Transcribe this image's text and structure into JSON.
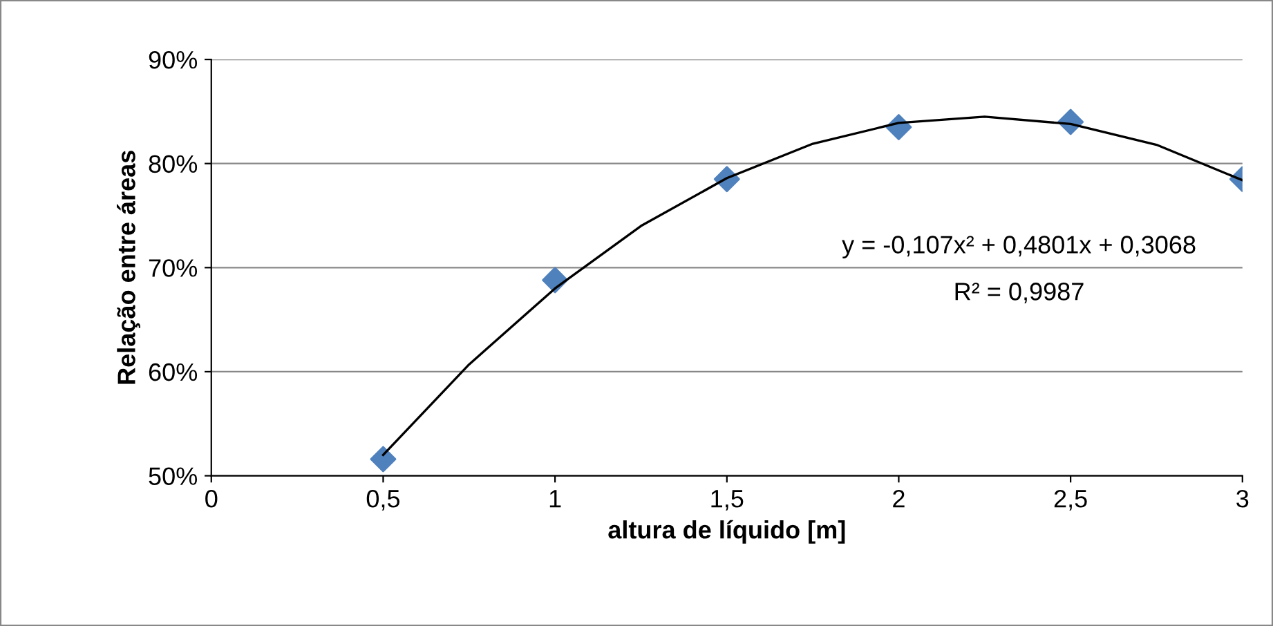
{
  "chart_data": {
    "type": "scatter",
    "xlabel": "altura de líquido [m]",
    "ylabel": "Relação entre áreas",
    "x": [
      0.5,
      1,
      1.5,
      2,
      2.5,
      3
    ],
    "series": [
      {
        "color": "#4f81bd",
        "marker": "diamond",
        "values": [
          51.6,
          68.8,
          78.5,
          83.5,
          84.0,
          78.5
        ]
      },
      {
        "type": "line",
        "color": "#000000",
        "marker": "none",
        "line_style": "solid",
        "x": [
          0.5,
          0.75,
          1,
          1.25,
          1.5,
          1.75,
          2,
          2.25,
          2.5,
          2.75,
          3
        ],
        "values": [
          52.0,
          60.7,
          68.0,
          74.0,
          78.6,
          81.9,
          83.9,
          84.5,
          83.8,
          81.8,
          78.4
        ]
      }
    ],
    "xlim": [
      0,
      3
    ],
    "xticks": [
      0,
      {
        "value": 0.5,
        "label": "0,5"
      },
      1,
      {
        "value": 1.5,
        "label": "1,5"
      },
      2,
      {
        "value": 2.5,
        "label": "2,5"
      },
      3
    ],
    "ylim": [
      50,
      90
    ],
    "yticks": [
      {
        "value": 50,
        "label": "50%"
      },
      {
        "value": 60,
        "label": "60%"
      },
      {
        "value": 70,
        "label": "70%"
      },
      {
        "value": 80,
        "label": "80%"
      },
      {
        "value": 90,
        "label": "90%"
      }
    ],
    "grid": "y",
    "legend": false,
    "annotations": [
      "y = -0,107x² + 0,4801x + 0,3068",
      "R² = 0,9987"
    ]
  }
}
